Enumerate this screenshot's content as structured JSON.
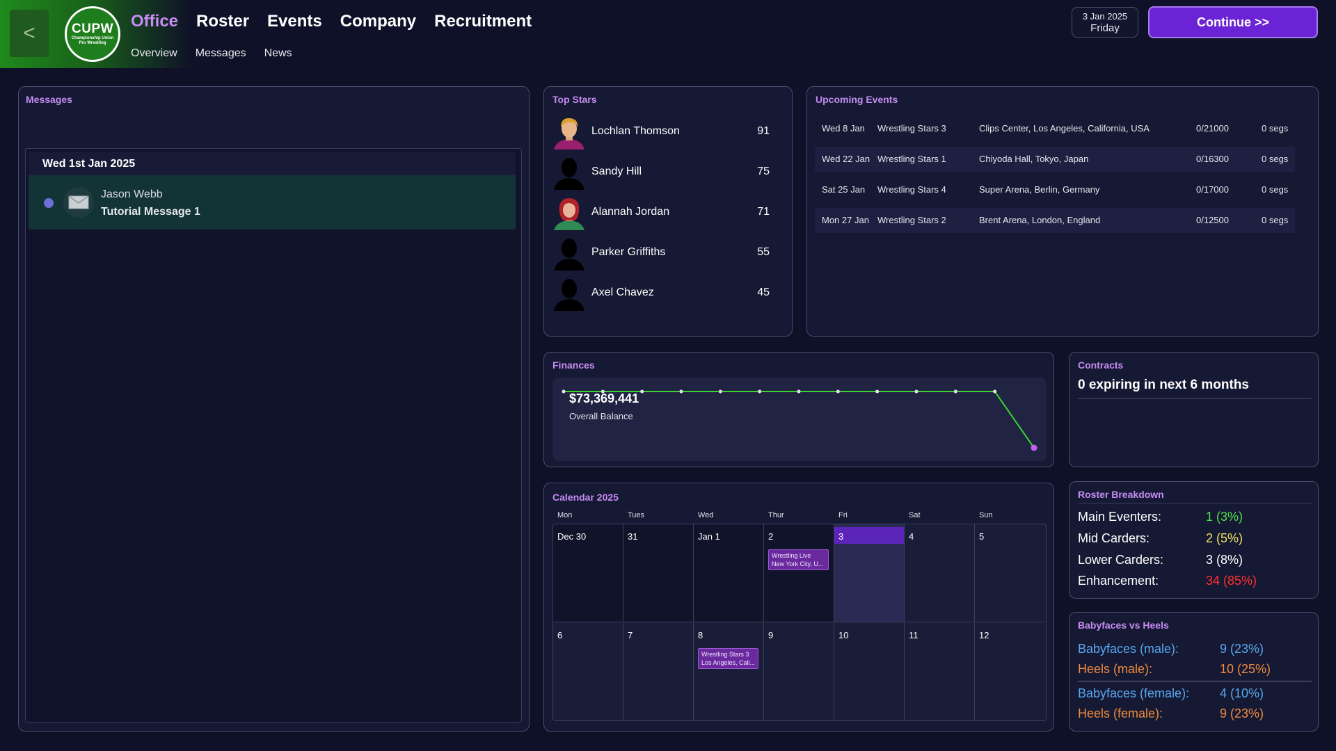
{
  "header": {
    "back_label": "<",
    "logo": {
      "abbr": "CUPW",
      "subtitle_1": "Championship Union",
      "subtitle_2": "Pro Wrestling"
    },
    "nav": [
      "Office",
      "Roster",
      "Events",
      "Company",
      "Recruitment"
    ],
    "active_nav": "Office",
    "subnav": [
      "Overview",
      "Messages",
      "News"
    ],
    "date_line1": "3 Jan 2025",
    "date_line2": "Friday",
    "continue_label": "Continue >>"
  },
  "messages": {
    "title": "Messages",
    "group_date": "Wed 1st Jan 2025",
    "items": [
      {
        "sender": "Jason Webb",
        "subject": "Tutorial Message 1",
        "icon": "envelope-icon"
      }
    ]
  },
  "top_stars": {
    "title": "Top Stars",
    "items": [
      {
        "name": "Lochlan Thomson",
        "score": "91",
        "avatar": "male-blond"
      },
      {
        "name": "Sandy Hill",
        "score": "75",
        "avatar": "silhouette"
      },
      {
        "name": "Alannah Jordan",
        "score": "71",
        "avatar": "female-red"
      },
      {
        "name": "Parker Griffiths",
        "score": "55",
        "avatar": "silhouette"
      },
      {
        "name": "Axel Chavez",
        "score": "45",
        "avatar": "silhouette"
      }
    ]
  },
  "upcoming_events": {
    "title": "Upcoming Events",
    "rows": [
      {
        "date": "Wed 8 Jan",
        "event": "Wrestling Stars 3",
        "venue": "Clips Center, Los Angeles, California, USA",
        "attendance": "0/21000",
        "segments": "0 segs"
      },
      {
        "date": "Wed 22 Jan",
        "event": "Wrestling Stars 1",
        "venue": "Chiyoda Hall, Tokyo, Japan",
        "attendance": "0/16300",
        "segments": "0 segs"
      },
      {
        "date": "Sat 25 Jan",
        "event": "Wrestling Stars 4",
        "venue": "Super Arena, Berlin, Germany",
        "attendance": "0/17000",
        "segments": "0 segs"
      },
      {
        "date": "Mon 27 Jan",
        "event": "Wrestling Stars 2",
        "venue": "Brent Arena, London, England",
        "attendance": "0/12500",
        "segments": "0 segs"
      }
    ]
  },
  "finances": {
    "title": "Finances",
    "balance": "$73,369,441",
    "balance_label": "Overall Balance",
    "line_color": "#39d631",
    "last_point_color": "#c060f0"
  },
  "chart_data": {
    "type": "line",
    "title": "",
    "xlabel": "",
    "ylabel": "",
    "grid": false,
    "series": [
      {
        "values": [
          1,
          1,
          1,
          1,
          1,
          1,
          1,
          1,
          1,
          1,
          1,
          1,
          0
        ]
      }
    ]
  },
  "contracts": {
    "title": "Contracts",
    "summary": "0 expiring in next 6 months"
  },
  "calendar": {
    "title": "Calendar 2025",
    "weekdays": [
      "Mon",
      "Tues",
      "Wed",
      "Thur",
      "Fri",
      "Sat",
      "Sun"
    ],
    "weeks": [
      [
        {
          "label": "Dec 30"
        },
        {
          "label": "31"
        },
        {
          "label": "Jan 1"
        },
        {
          "label": "2",
          "event_line1": "Wrestling Live",
          "event_line2": "New York City, U..."
        },
        {
          "label": "3",
          "today": true
        },
        {
          "label": "4"
        },
        {
          "label": "5"
        }
      ],
      [
        {
          "label": "6"
        },
        {
          "label": "7"
        },
        {
          "label": "8",
          "event_line1": "Wrestling Stars 3",
          "event_line2": "Los Angeles, Cali..."
        },
        {
          "label": "9"
        },
        {
          "label": "10"
        },
        {
          "label": "11"
        },
        {
          "label": "12"
        }
      ]
    ]
  },
  "roster_breakdown": {
    "title": "Roster Breakdown",
    "rows": [
      {
        "label": "Main Eventers:",
        "value": "1 (3%)",
        "color": "#4ee04a"
      },
      {
        "label": "Mid Carders:",
        "value": "2 (5%)",
        "color": "#f0e060"
      },
      {
        "label": "Lower Carders:",
        "value": "3 (8%)",
        "color": "#ffffff"
      },
      {
        "label": "Enhancement:",
        "value": "34 (85%)",
        "color": "#ff3030"
      }
    ]
  },
  "babyfaces_vs_heels": {
    "title": "Babyfaces vs Heels",
    "rows": [
      {
        "label": "Babyfaces (male):",
        "value": "9 (23%)",
        "color": "#58a8f0"
      },
      {
        "label": "Heels (male):",
        "value": "10 (25%)",
        "color": "#f08c3c"
      },
      {
        "label": "Babyfaces (female):",
        "value": "4 (10%)",
        "color": "#58a8f0"
      },
      {
        "label": "Heels (female):",
        "value": "9 (23%)",
        "color": "#f08c3c"
      }
    ]
  }
}
